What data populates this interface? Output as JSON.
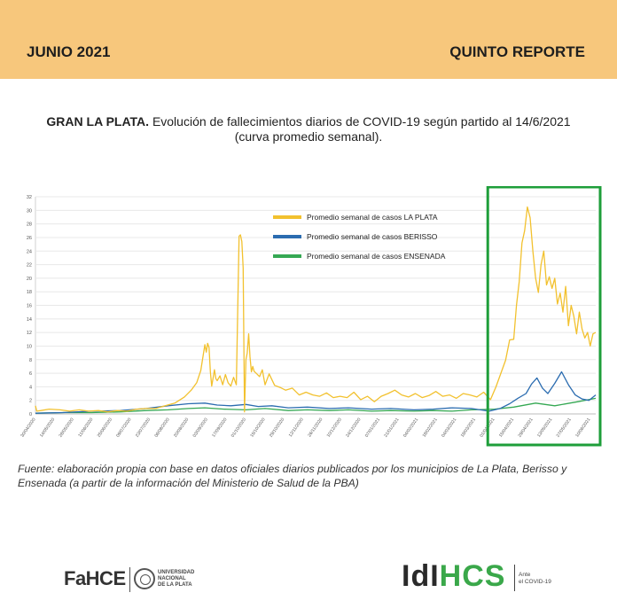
{
  "header": {
    "left_text": "JUNIO 2021",
    "right_text": "QUINTO REPORTE"
  },
  "title": {
    "bold": "GRAN LA PLATA.",
    "text": "Evolución de fallecimientos diarios de COVID-19 según partido al 14/6/2021",
    "line2": "(curva promedio semanal)."
  },
  "source": "Fuente: elaboración propia con base en datos oficiales diarios publicados por los municipios de La Plata, Berisso y Ensenada (a partir de la información del Ministerio de Salud de la PBA)",
  "logos": {
    "fahce": "FaHCE",
    "unlp_lines": [
      "UNIVERSIDAD",
      "NACIONAL",
      "DE LA PLATA"
    ],
    "idi": "IdI",
    "hcs": "HCS",
    "ante_lines": [
      "Ante",
      "el COVID-19"
    ]
  },
  "colors": {
    "la_plata": "#f2c12e",
    "berisso": "#2b6cb0",
    "ensenada": "#35a853",
    "highlight_box": "#1e9e3a",
    "header_bg": "#f7c77c"
  },
  "chart_data": {
    "type": "line",
    "ylim": [
      0,
      32
    ],
    "yticks": [
      0,
      2,
      4,
      6,
      8,
      10,
      12,
      14,
      16,
      18,
      20,
      22,
      24,
      26,
      28,
      30,
      32
    ],
    "xlim": [
      "2020-04-30",
      "2021-06-14"
    ],
    "xtick_labels": [
      "30/04/2020",
      "14/05/2020",
      "28/05/2020",
      "11/06/2020",
      "25/06/2020",
      "09/07/2020",
      "23/07/2020",
      "06/08/2020",
      "20/08/2020",
      "03/09/2020",
      "17/09/2020",
      "01/10/2020",
      "15/10/2020",
      "29/10/2020",
      "12/11/2020",
      "26/11/2020",
      "10/12/2020",
      "24/12/2020",
      "07/01/2021",
      "21/01/2021",
      "04/02/2021",
      "18/02/2021",
      "04/03/2021",
      "18/03/2021",
      "01/04/2021",
      "15/04/2021",
      "29/04/2021",
      "13/05/2021",
      "27/05/2021",
      "10/06/2021"
    ],
    "legend_position": "top-right",
    "grid": true,
    "highlight": {
      "from": "2021-03-27",
      "to": "2021-06-14"
    },
    "series": [
      {
        "name": "Promedio semanal de casos LA PLATA",
        "color_key": "la_plata",
        "x": [
          "2020-04-30",
          "2020-05-01",
          "2020-05-04",
          "2020-05-10",
          "2020-05-18",
          "2020-05-25",
          "2020-06-01",
          "2020-06-08",
          "2020-06-15",
          "2020-06-22",
          "2020-06-29",
          "2020-07-06",
          "2020-07-13",
          "2020-07-20",
          "2020-07-27",
          "2020-08-03",
          "2020-08-10",
          "2020-08-17",
          "2020-08-22",
          "2020-08-26",
          "2020-08-29",
          "2020-09-01",
          "2020-09-02",
          "2020-09-03",
          "2020-09-04",
          "2020-09-05",
          "2020-09-06",
          "2020-09-07",
          "2020-09-08",
          "2020-09-09",
          "2020-09-10",
          "2020-09-12",
          "2020-09-14",
          "2020-09-16",
          "2020-09-18",
          "2020-09-20",
          "2020-09-22",
          "2020-09-24",
          "2020-09-26",
          "2020-09-27",
          "2020-09-28",
          "2020-09-29",
          "2020-09-30",
          "2020-10-01",
          "2020-10-02",
          "2020-10-03",
          "2020-10-04",
          "2020-10-05",
          "2020-10-06",
          "2020-10-07",
          "2020-10-09",
          "2020-10-11",
          "2020-10-13",
          "2020-10-15",
          "2020-10-18",
          "2020-10-22",
          "2020-10-26",
          "2020-10-30",
          "2020-11-04",
          "2020-11-09",
          "2020-11-14",
          "2020-11-19",
          "2020-11-24",
          "2020-11-29",
          "2020-12-04",
          "2020-12-09",
          "2020-12-14",
          "2020-12-19",
          "2020-12-24",
          "2020-12-29",
          "2021-01-03",
          "2021-01-08",
          "2021-01-13",
          "2021-01-18",
          "2021-01-23",
          "2021-01-28",
          "2021-02-02",
          "2021-02-07",
          "2021-02-12",
          "2021-02-17",
          "2021-02-22",
          "2021-02-27",
          "2021-03-04",
          "2021-03-09",
          "2021-03-14",
          "2021-03-19",
          "2021-03-24",
          "2021-03-29",
          "2021-04-02",
          "2021-04-06",
          "2021-04-09",
          "2021-04-12",
          "2021-04-15",
          "2021-04-17",
          "2021-04-19",
          "2021-04-21",
          "2021-04-23",
          "2021-04-25",
          "2021-04-27",
          "2021-04-29",
          "2021-05-01",
          "2021-05-03",
          "2021-05-05",
          "2021-05-07",
          "2021-05-09",
          "2021-05-11",
          "2021-05-13",
          "2021-05-15",
          "2021-05-17",
          "2021-05-19",
          "2021-05-21",
          "2021-05-23",
          "2021-05-25",
          "2021-05-27",
          "2021-05-29",
          "2021-05-31",
          "2021-06-02",
          "2021-06-04",
          "2021-06-06",
          "2021-06-08",
          "2021-06-10",
          "2021-06-12",
          "2021-06-14"
        ],
        "y": [
          1.2,
          0.4,
          0.5,
          0.7,
          0.6,
          0.4,
          0.6,
          0.4,
          0.5,
          0.3,
          0.5,
          0.4,
          0.7,
          0.8,
          0.8,
          1.2,
          1.6,
          2.5,
          3.5,
          4.6,
          6.4,
          10.2,
          9.1,
          10.4,
          9.8,
          6.2,
          4.1,
          5.3,
          6.5,
          5.2,
          4.9,
          5.6,
          4.3,
          5.8,
          4.6,
          4.1,
          5.4,
          4.3,
          26.2,
          26.4,
          25.4,
          21.5,
          0.3,
          8.0,
          9.0,
          11.8,
          8.4,
          6.2,
          7.0,
          6.3,
          5.9,
          5.5,
          6.5,
          4.3,
          5.9,
          4.2,
          3.9,
          3.5,
          3.8,
          2.8,
          3.2,
          2.8,
          2.6,
          3.1,
          2.4,
          2.6,
          2.4,
          3.2,
          2.1,
          2.6,
          1.8,
          2.6,
          3.0,
          3.5,
          2.8,
          2.5,
          3.0,
          2.4,
          2.7,
          3.3,
          2.6,
          2.8,
          2.3,
          3.0,
          2.8,
          2.5,
          3.2,
          2.1,
          4.0,
          6.2,
          7.9,
          10.9,
          11.0,
          16.0,
          19.5,
          25.2,
          27.0,
          30.5,
          28.9,
          24.0,
          20.0,
          17.9,
          22.0,
          24.0,
          19.0,
          20.2,
          18.5,
          20.0,
          16.2,
          17.8,
          15.0,
          18.8,
          13.0,
          16.0,
          14.4,
          11.8,
          15.0,
          12.5,
          11.2,
          12.0,
          10.0,
          11.8,
          12.0
        ]
      },
      {
        "name": "Promedio semanal de casos BERISSO",
        "color_key": "berisso",
        "x": [
          "2020-04-30",
          "2020-05-20",
          "2020-06-10",
          "2020-07-01",
          "2020-07-20",
          "2020-08-05",
          "2020-08-20",
          "2020-09-01",
          "2020-09-10",
          "2020-09-20",
          "2020-10-01",
          "2020-10-10",
          "2020-10-20",
          "2020-11-01",
          "2020-11-15",
          "2020-12-01",
          "2020-12-15",
          "2021-01-01",
          "2021-01-15",
          "2021-02-01",
          "2021-02-15",
          "2021-03-01",
          "2021-03-15",
          "2021-03-28",
          "2021-04-05",
          "2021-04-12",
          "2021-04-18",
          "2021-04-24",
          "2021-04-28",
          "2021-05-02",
          "2021-05-06",
          "2021-05-10",
          "2021-05-15",
          "2021-05-20",
          "2021-05-25",
          "2021-05-30",
          "2021-06-04",
          "2021-06-09",
          "2021-06-14"
        ],
        "y": [
          0.1,
          0.2,
          0.4,
          0.5,
          0.8,
          1.2,
          1.5,
          1.6,
          1.3,
          1.2,
          1.4,
          1.1,
          1.2,
          0.9,
          1.0,
          0.8,
          0.9,
          0.7,
          0.8,
          0.6,
          0.7,
          0.9,
          0.8,
          0.4,
          0.8,
          1.5,
          2.3,
          3.0,
          4.4,
          5.3,
          3.8,
          3.0,
          4.5,
          6.2,
          4.3,
          2.8,
          2.2,
          2.0,
          2.8
        ]
      },
      {
        "name": "Promedio semanal de casos ENSENADA",
        "color_key": "ensenada",
        "x": [
          "2020-04-30",
          "2020-05-20",
          "2020-06-10",
          "2020-07-01",
          "2020-07-20",
          "2020-08-05",
          "2020-08-20",
          "2020-09-01",
          "2020-09-15",
          "2020-10-01",
          "2020-10-15",
          "2020-11-01",
          "2020-11-15",
          "2020-12-01",
          "2020-12-15",
          "2021-01-01",
          "2021-01-15",
          "2021-02-01",
          "2021-02-15",
          "2021-03-01",
          "2021-03-15",
          "2021-04-01",
          "2021-04-15",
          "2021-05-01",
          "2021-05-15",
          "2021-06-01",
          "2021-06-14"
        ],
        "y": [
          0.1,
          0.2,
          0.2,
          0.3,
          0.5,
          0.6,
          0.8,
          0.9,
          0.7,
          0.6,
          0.8,
          0.5,
          0.6,
          0.5,
          0.6,
          0.4,
          0.5,
          0.4,
          0.5,
          0.4,
          0.6,
          0.7,
          1.0,
          1.6,
          1.2,
          1.8,
          2.3
        ]
      }
    ]
  }
}
